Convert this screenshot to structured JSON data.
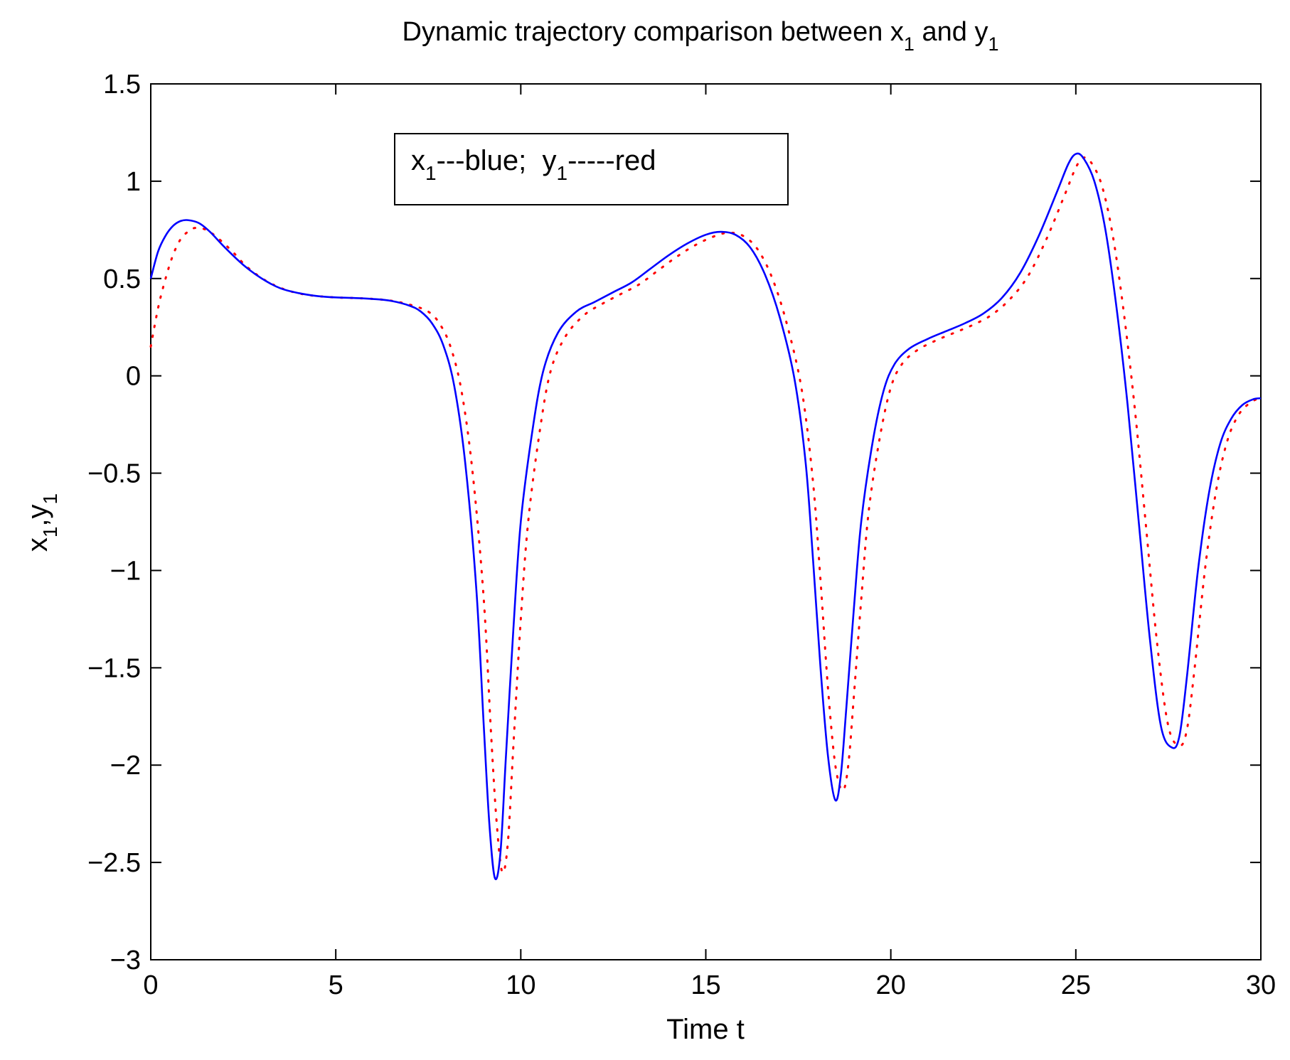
{
  "chart_data": {
    "type": "line",
    "title": "Dynamic trajectory comparison between x",
    "title_sub1": "1",
    "title_mid": " and y",
    "title_sub2": "1",
    "xlabel": "Time t",
    "ylabel_x": "x",
    "ylabel_sub1": "1",
    "ylabel_sep": ",y",
    "ylabel_sub2": "1",
    "xlim": [
      0,
      30
    ],
    "ylim": [
      -3,
      1.5
    ],
    "x_ticks": [
      0,
      5,
      10,
      15,
      20,
      25,
      30
    ],
    "x_tick_labels": [
      "0",
      "5",
      "10",
      "15",
      "20",
      "25",
      "30"
    ],
    "y_ticks": [
      -3,
      -2.5,
      -2,
      -1.5,
      -1,
      -0.5,
      0,
      0.5,
      1,
      1.5
    ],
    "y_tick_labels": [
      "−3",
      "−2.5",
      "−2",
      "−1.5",
      "−1",
      "−0.5",
      "0",
      "0.5",
      "1",
      "1.5"
    ],
    "grid": false,
    "legend": {
      "placement": "top-center",
      "x_label": "x",
      "x_sub": "1",
      "x_text": "---blue;  y",
      "y_sub": "1",
      "y_text": "-----red"
    },
    "series": [
      {
        "color": "#0000ff",
        "style": "solid",
        "points": [
          [
            0,
            0.5
          ],
          [
            0.2,
            0.64
          ],
          [
            0.4,
            0.72
          ],
          [
            0.6,
            0.77
          ],
          [
            0.8,
            0.795
          ],
          [
            1.0,
            0.8
          ],
          [
            1.3,
            0.785
          ],
          [
            1.6,
            0.74
          ],
          [
            2.0,
            0.66
          ],
          [
            2.5,
            0.57
          ],
          [
            3.0,
            0.5
          ],
          [
            3.5,
            0.45
          ],
          [
            4.0,
            0.425
          ],
          [
            4.5,
            0.41
          ],
          [
            5.0,
            0.403
          ],
          [
            5.5,
            0.4
          ],
          [
            6.0,
            0.395
          ],
          [
            6.5,
            0.385
          ],
          [
            7.0,
            0.36
          ],
          [
            7.3,
            0.33
          ],
          [
            7.6,
            0.27
          ],
          [
            7.9,
            0.16
          ],
          [
            8.2,
            -0.05
          ],
          [
            8.5,
            -0.45
          ],
          [
            8.8,
            -1.1
          ],
          [
            9.0,
            -1.8
          ],
          [
            9.15,
            -2.3
          ],
          [
            9.3,
            -2.58
          ],
          [
            9.45,
            -2.45
          ],
          [
            9.6,
            -1.95
          ],
          [
            9.8,
            -1.3
          ],
          [
            10.0,
            -0.75
          ],
          [
            10.3,
            -0.3
          ],
          [
            10.6,
            0.02
          ],
          [
            11.0,
            0.22
          ],
          [
            11.5,
            0.33
          ],
          [
            12.0,
            0.38
          ],
          [
            12.5,
            0.43
          ],
          [
            13.0,
            0.48
          ],
          [
            13.5,
            0.55
          ],
          [
            14.0,
            0.62
          ],
          [
            14.5,
            0.68
          ],
          [
            15.0,
            0.725
          ],
          [
            15.4,
            0.74
          ],
          [
            15.8,
            0.725
          ],
          [
            16.2,
            0.66
          ],
          [
            16.6,
            0.52
          ],
          [
            17.0,
            0.3
          ],
          [
            17.4,
            -0.02
          ],
          [
            17.7,
            -0.45
          ],
          [
            17.9,
            -0.95
          ],
          [
            18.1,
            -1.5
          ],
          [
            18.3,
            -1.95
          ],
          [
            18.5,
            -2.18
          ],
          [
            18.65,
            -2.05
          ],
          [
            18.8,
            -1.7
          ],
          [
            19.0,
            -1.2
          ],
          [
            19.2,
            -0.75
          ],
          [
            19.5,
            -0.35
          ],
          [
            19.8,
            -0.08
          ],
          [
            20.1,
            0.06
          ],
          [
            20.5,
            0.14
          ],
          [
            21.0,
            0.19
          ],
          [
            21.5,
            0.23
          ],
          [
            22.0,
            0.27
          ],
          [
            22.5,
            0.32
          ],
          [
            23.0,
            0.4
          ],
          [
            23.5,
            0.53
          ],
          [
            24.0,
            0.72
          ],
          [
            24.5,
            0.95
          ],
          [
            24.8,
            1.09
          ],
          [
            25.0,
            1.14
          ],
          [
            25.2,
            1.12
          ],
          [
            25.5,
            1.0
          ],
          [
            25.8,
            0.75
          ],
          [
            26.1,
            0.35
          ],
          [
            26.4,
            -0.15
          ],
          [
            26.7,
            -0.75
          ],
          [
            27.0,
            -1.35
          ],
          [
            27.3,
            -1.8
          ],
          [
            27.6,
            -1.91
          ],
          [
            27.8,
            -1.85
          ],
          [
            28.0,
            -1.55
          ],
          [
            28.3,
            -1.0
          ],
          [
            28.6,
            -0.6
          ],
          [
            28.9,
            -0.35
          ],
          [
            29.2,
            -0.22
          ],
          [
            29.5,
            -0.15
          ],
          [
            29.8,
            -0.12
          ],
          [
            30.0,
            -0.115
          ]
        ]
      },
      {
        "color": "#ff0000",
        "style": "dotted",
        "points": [
          [
            0,
            0.15
          ],
          [
            0.2,
            0.35
          ],
          [
            0.4,
            0.5
          ],
          [
            0.6,
            0.62
          ],
          [
            0.8,
            0.7
          ],
          [
            1.0,
            0.74
          ],
          [
            1.2,
            0.76
          ],
          [
            1.5,
            0.75
          ],
          [
            1.8,
            0.71
          ],
          [
            2.2,
            0.64
          ],
          [
            2.6,
            0.56
          ],
          [
            3.1,
            0.49
          ],
          [
            3.6,
            0.445
          ],
          [
            4.1,
            0.42
          ],
          [
            4.6,
            0.408
          ],
          [
            5.1,
            0.402
          ],
          [
            5.6,
            0.399
          ],
          [
            6.1,
            0.394
          ],
          [
            6.6,
            0.383
          ],
          [
            7.1,
            0.36
          ],
          [
            7.5,
            0.33
          ],
          [
            7.8,
            0.27
          ],
          [
            8.1,
            0.15
          ],
          [
            8.4,
            -0.08
          ],
          [
            8.7,
            -0.5
          ],
          [
            9.0,
            -1.15
          ],
          [
            9.2,
            -1.85
          ],
          [
            9.35,
            -2.3
          ],
          [
            9.5,
            -2.55
          ],
          [
            9.65,
            -2.4
          ],
          [
            9.8,
            -1.9
          ],
          [
            10.0,
            -1.25
          ],
          [
            10.2,
            -0.75
          ],
          [
            10.5,
            -0.3
          ],
          [
            10.8,
            0.02
          ],
          [
            11.2,
            0.2
          ],
          [
            11.7,
            0.31
          ],
          [
            12.2,
            0.37
          ],
          [
            12.7,
            0.42
          ],
          [
            13.2,
            0.47
          ],
          [
            13.7,
            0.54
          ],
          [
            14.2,
            0.61
          ],
          [
            14.7,
            0.67
          ],
          [
            15.2,
            0.715
          ],
          [
            15.6,
            0.735
          ],
          [
            16.0,
            0.72
          ],
          [
            16.4,
            0.65
          ],
          [
            16.8,
            0.5
          ],
          [
            17.2,
            0.26
          ],
          [
            17.6,
            -0.08
          ],
          [
            17.9,
            -0.55
          ],
          [
            18.1,
            -1.05
          ],
          [
            18.3,
            -1.6
          ],
          [
            18.5,
            -2.0
          ],
          [
            18.7,
            -2.13
          ],
          [
            18.85,
            -2.0
          ],
          [
            19.0,
            -1.65
          ],
          [
            19.2,
            -1.15
          ],
          [
            19.4,
            -0.7
          ],
          [
            19.7,
            -0.32
          ],
          [
            20.0,
            -0.06
          ],
          [
            20.3,
            0.06
          ],
          [
            20.7,
            0.13
          ],
          [
            21.2,
            0.18
          ],
          [
            21.7,
            0.22
          ],
          [
            22.2,
            0.26
          ],
          [
            22.7,
            0.31
          ],
          [
            23.2,
            0.39
          ],
          [
            23.7,
            0.51
          ],
          [
            24.2,
            0.7
          ],
          [
            24.7,
            0.93
          ],
          [
            25.0,
            1.07
          ],
          [
            25.2,
            1.12
          ],
          [
            25.4,
            1.1
          ],
          [
            25.7,
            0.98
          ],
          [
            26.0,
            0.72
          ],
          [
            26.3,
            0.32
          ],
          [
            26.6,
            -0.18
          ],
          [
            26.9,
            -0.78
          ],
          [
            27.2,
            -1.38
          ],
          [
            27.5,
            -1.8
          ],
          [
            27.8,
            -1.9
          ],
          [
            28.0,
            -1.82
          ],
          [
            28.2,
            -1.52
          ],
          [
            28.5,
            -0.98
          ],
          [
            28.8,
            -0.58
          ],
          [
            29.1,
            -0.33
          ],
          [
            29.4,
            -0.2
          ],
          [
            29.7,
            -0.14
          ],
          [
            30.0,
            -0.11
          ]
        ]
      }
    ]
  }
}
